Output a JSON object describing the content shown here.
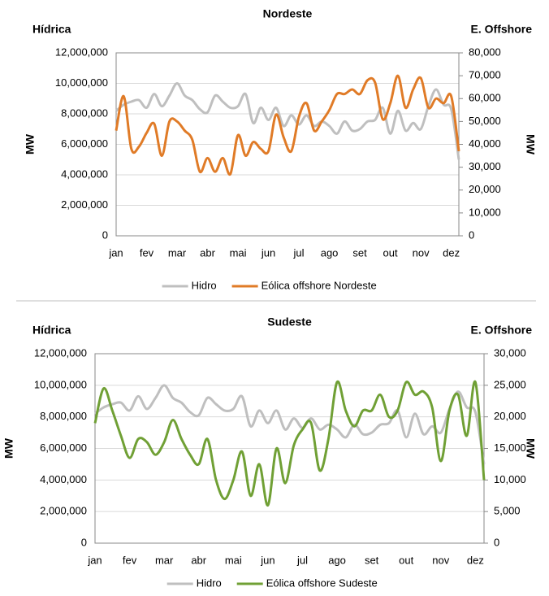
{
  "chart_data": [
    {
      "type": "line",
      "title": "Nordeste",
      "left_title": "Hídrica",
      "right_title": "E. Offshore",
      "ylabel": "MW",
      "y2label": "MW",
      "categories": [
        "jan",
        null,
        null,
        null,
        "fev",
        null,
        null,
        null,
        "mar",
        null,
        null,
        null,
        "abr",
        null,
        null,
        null,
        "mai",
        null,
        null,
        null,
        "jun",
        null,
        null,
        null,
        "jul",
        null,
        null,
        null,
        "ago",
        null,
        null,
        null,
        "set",
        null,
        null,
        null,
        "out",
        null,
        null,
        null,
        "nov",
        null,
        null,
        null,
        "dez",
        null
      ],
      "ylim": [
        0,
        12000000
      ],
      "yticks": [
        0,
        {
          "value": 2000000,
          "label": "2,000,000"
        },
        {
          "value": 4000000,
          "label": "4,000,000"
        },
        {
          "value": 6000000,
          "label": "6,000,000"
        },
        {
          "value": 8000000,
          "label": "8,000,000"
        },
        {
          "value": 10000000,
          "label": "10,000,000"
        },
        {
          "value": 12000000,
          "label": "12,000,000"
        }
      ],
      "y2lim": [
        0,
        80000
      ],
      "y2ticks": [
        0,
        {
          "value": 10000,
          "label": "10,000"
        },
        {
          "value": 20000,
          "label": "20,000"
        },
        {
          "value": 30000,
          "label": "30,000"
        },
        {
          "value": 40000,
          "label": "40,000"
        },
        {
          "value": 50000,
          "label": "50,000"
        },
        {
          "value": 60000,
          "label": "60,000"
        },
        {
          "value": 70000,
          "label": "70,000"
        },
        {
          "value": 80000,
          "label": "80,000"
        }
      ],
      "grid": true,
      "legend": "bottom",
      "series": [
        {
          "name": "Hidro",
          "color": "#bfbfbf",
          "values": [
            8200000,
            8600000,
            8800000,
            8900000,
            8400000,
            9300000,
            8500000,
            9200000,
            10000000,
            9200000,
            8900000,
            8300000,
            8100000,
            9200000,
            8800000,
            8400000,
            8500000,
            9300000,
            7400000,
            8400000,
            7600000,
            8400000,
            7200000,
            7900000,
            7300000,
            7900000,
            7200000,
            7500000,
            7200000,
            6700000,
            7500000,
            6900000,
            7000000,
            7500000,
            7600000,
            8400000,
            6700000,
            8200000,
            6900000,
            7400000,
            7000000,
            8500000,
            9600000,
            8600000,
            8300000,
            5000000
          ]
        },
        {
          "name": "Eólica offshore Nordeste",
          "color": "#e07b27",
          "axis": "y2",
          "values": [
            46000,
            61000,
            38000,
            39000,
            45000,
            49000,
            35000,
            50000,
            50000,
            46000,
            42000,
            28000,
            34000,
            28000,
            34000,
            27000,
            44000,
            35000,
            41000,
            38000,
            37000,
            53000,
            43000,
            37000,
            52000,
            58000,
            46000,
            50000,
            55000,
            62000,
            62000,
            64000,
            62000,
            68000,
            67000,
            51000,
            58000,
            70000,
            56000,
            64000,
            69000,
            56000,
            60000,
            58000,
            61000,
            37000
          ]
        }
      ]
    },
    {
      "type": "line",
      "title": "Sudeste",
      "left_title": "Hídrica",
      "right_title": "E. Offshore",
      "ylabel": "MW",
      "y2label": "MW",
      "categories": [
        "jan",
        null,
        null,
        null,
        "fev",
        null,
        null,
        null,
        "mar",
        null,
        null,
        null,
        "abr",
        null,
        null,
        null,
        "mai",
        null,
        null,
        null,
        "jun",
        null,
        null,
        null,
        "jul",
        null,
        null,
        null,
        "ago",
        null,
        null,
        null,
        "set",
        null,
        null,
        null,
        "out",
        null,
        null,
        null,
        "nov",
        null,
        null,
        null,
        "dez",
        null
      ],
      "ylim": [
        0,
        12000000
      ],
      "yticks": [
        0,
        {
          "value": 2000000,
          "label": "2,000,000"
        },
        {
          "value": 4000000,
          "label": "4,000,000"
        },
        {
          "value": 6000000,
          "label": "6,000,000"
        },
        {
          "value": 8000000,
          "label": "8,000,000"
        },
        {
          "value": 10000000,
          "label": "10,000,000"
        },
        {
          "value": 12000000,
          "label": "12,000,000"
        }
      ],
      "y2lim": [
        0,
        30000
      ],
      "y2ticks": [
        0,
        {
          "value": 5000,
          "label": "5,000"
        },
        {
          "value": 10000,
          "label": "10,000"
        },
        {
          "value": 15000,
          "label": "15,000"
        },
        {
          "value": 20000,
          "label": "20,000"
        },
        {
          "value": 25000,
          "label": "25,000"
        },
        {
          "value": 30000,
          "label": "30,000"
        }
      ],
      "grid": true,
      "legend": "bottom",
      "series": [
        {
          "name": "Hidro",
          "color": "#bfbfbf",
          "values": [
            8200000,
            8600000,
            8800000,
            8900000,
            8400000,
            9300000,
            8500000,
            9200000,
            10000000,
            9200000,
            8900000,
            8300000,
            8100000,
            9200000,
            8800000,
            8400000,
            8500000,
            9300000,
            7400000,
            8400000,
            7600000,
            8400000,
            7200000,
            7900000,
            7300000,
            7900000,
            7200000,
            7500000,
            7200000,
            6700000,
            7500000,
            6900000,
            7000000,
            7500000,
            7600000,
            8400000,
            6700000,
            8200000,
            6900000,
            7400000,
            7000000,
            8500000,
            9600000,
            8600000,
            8300000,
            5000000
          ]
        },
        {
          "name": "Eólica offshore Sudeste",
          "color": "#70a035",
          "axis": "y2",
          "values": [
            19000,
            24500,
            21000,
            17000,
            13500,
            16500,
            16000,
            14000,
            16000,
            19500,
            16500,
            14000,
            12500,
            16500,
            10000,
            7000,
            10000,
            14500,
            7500,
            12500,
            6000,
            15000,
            9500,
            15500,
            18000,
            19000,
            11500,
            16500,
            25500,
            21000,
            18500,
            21000,
            21000,
            23500,
            20000,
            21000,
            25500,
            23500,
            24000,
            21500,
            13000,
            21000,
            23500,
            17000,
            25500,
            10000
          ]
        }
      ]
    }
  ]
}
